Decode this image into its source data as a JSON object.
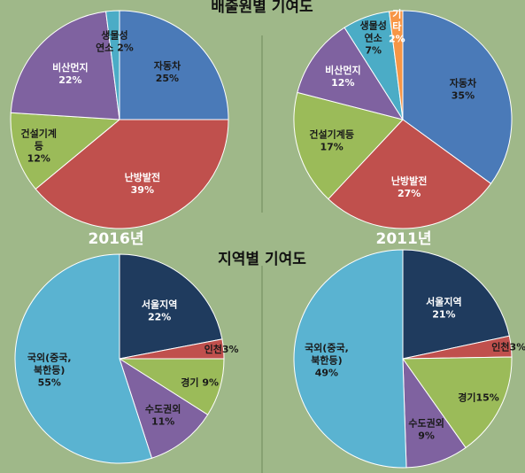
{
  "titles": {
    "top": "배출원별 기여도",
    "bottom": "지역별 기여도"
  },
  "year_labels": {
    "left": "2016년",
    "right": "2011년"
  },
  "chart_data": [
    {
      "type": "pie",
      "title": "배출원별 기여도",
      "year": "2016년",
      "slices": [
        {
          "name": "자동차",
          "value": 25,
          "color": "#4a7ab8",
          "label_lines": [
            "자동차",
            "25%"
          ],
          "text_color": "#1a1a1a"
        },
        {
          "name": "난방발전",
          "value": 39,
          "color": "#c0504d",
          "label_lines": [
            "난방발전",
            "39%"
          ],
          "text_color": "#ffffff"
        },
        {
          "name": "건설기계등",
          "value": 12,
          "color": "#9bbb59",
          "label_lines": [
            "건설기계",
            "등",
            "12%"
          ],
          "text_color": "#1a1a1a"
        },
        {
          "name": "비산먼지",
          "value": 22,
          "color": "#7f62a0",
          "label_lines": [
            "비산먼지",
            "22%"
          ],
          "text_color": "#ffffff"
        },
        {
          "name": "생물성연소",
          "value": 2,
          "color": "#4bacc6",
          "label_lines": [
            "생물성",
            "연소 2%"
          ],
          "text_color": "#1a1a1a"
        }
      ]
    },
    {
      "type": "pie",
      "title": "배출원별 기여도",
      "year": "2011년",
      "slices": [
        {
          "name": "자동차",
          "value": 35,
          "color": "#4a7ab8",
          "label_lines": [
            "자동차",
            "35%"
          ],
          "text_color": "#1a1a1a"
        },
        {
          "name": "난방발전",
          "value": 27,
          "color": "#c0504d",
          "label_lines": [
            "난방발전",
            "27%"
          ],
          "text_color": "#ffffff"
        },
        {
          "name": "건설기계등",
          "value": 17,
          "color": "#9bbb59",
          "label_lines": [
            "건설기계등",
            "17%"
          ],
          "text_color": "#1a1a1a"
        },
        {
          "name": "비산먼지",
          "value": 12,
          "color": "#7f62a0",
          "label_lines": [
            "비산먼지",
            "12%"
          ],
          "text_color": "#ffffff"
        },
        {
          "name": "생물성연소",
          "value": 7,
          "color": "#4bacc6",
          "label_lines": [
            "생물성",
            "연소",
            "7%"
          ],
          "text_color": "#1a1a1a"
        },
        {
          "name": "기타",
          "value": 2,
          "color": "#f79646",
          "label_lines": [
            "기",
            "타",
            "2%"
          ],
          "text_color": "#ffffff"
        }
      ]
    },
    {
      "type": "pie",
      "title": "지역별 기여도",
      "year": "2016년",
      "slices": [
        {
          "name": "서울지역",
          "value": 22,
          "color": "#1f3b5e",
          "label_lines": [
            "서울지역",
            "22%"
          ],
          "text_color": "#ffffff"
        },
        {
          "name": "인천",
          "value": 3,
          "color": "#c0504d",
          "label_lines": [
            "인천3%"
          ],
          "text_color": "#1a1a1a"
        },
        {
          "name": "경기",
          "value": 9,
          "color": "#9bbb59",
          "label_lines": [
            "경기 9%"
          ],
          "text_color": "#1a1a1a"
        },
        {
          "name": "수도권외",
          "value": 11,
          "color": "#7f62a0",
          "label_lines": [
            "수도권외",
            "11%"
          ],
          "text_color": "#1a1a1a"
        },
        {
          "name": "국외(중국, 북한등)",
          "value": 55,
          "color": "#5ab3d1",
          "label_lines": [
            "국외(중국,",
            "북한등)",
            "55%"
          ],
          "text_color": "#1a1a1a"
        }
      ]
    },
    {
      "type": "pie",
      "title": "지역별 기여도",
      "year": "2011년",
      "slices": [
        {
          "name": "서울지역",
          "value": 21,
          "color": "#1f3b5e",
          "label_lines": [
            "서울지역",
            "21%"
          ],
          "text_color": "#ffffff"
        },
        {
          "name": "인천",
          "value": 3,
          "color": "#c0504d",
          "label_lines": [
            "인천3%"
          ],
          "text_color": "#1a1a1a"
        },
        {
          "name": "경기",
          "value": 15,
          "color": "#9bbb59",
          "label_lines": [
            "경기15%"
          ],
          "text_color": "#1a1a1a"
        },
        {
          "name": "수도권외",
          "value": 9,
          "color": "#7f62a0",
          "label_lines": [
            "수도권외",
            "9%"
          ],
          "text_color": "#1a1a1a"
        },
        {
          "name": "국외(중국, 북한등)",
          "value": 49,
          "color": "#5ab3d1",
          "label_lines": [
            "국외(중국,",
            "북한등)",
            "49%"
          ],
          "text_color": "#1a1a1a"
        }
      ]
    }
  ]
}
